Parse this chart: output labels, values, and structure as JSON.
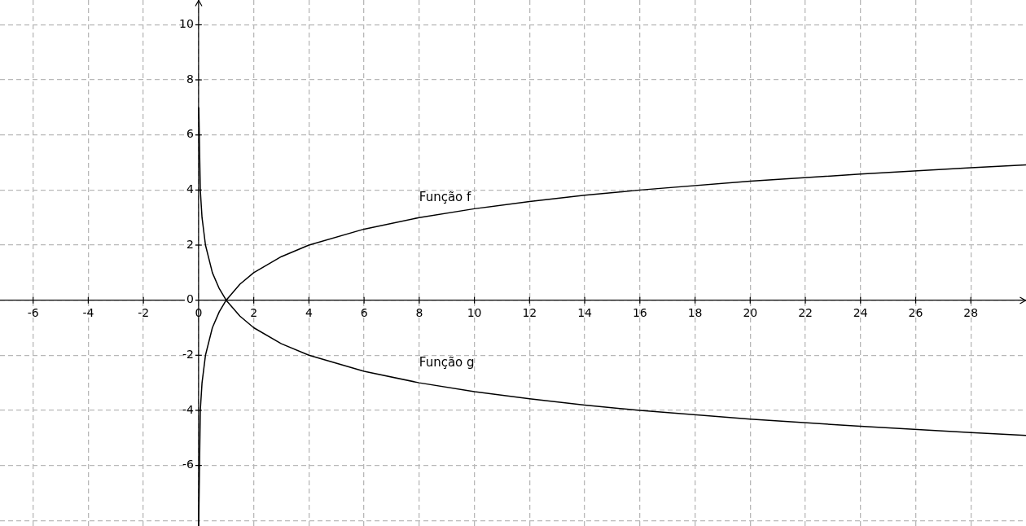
{
  "chart_data": {
    "type": "line",
    "series": [
      {
        "name": "Função f",
        "color": "#000000",
        "x": [
          0.0035,
          0.0625,
          0.125,
          0.25,
          0.5,
          0.75,
          1,
          1.5,
          2,
          3,
          4,
          6,
          8,
          10,
          12,
          14,
          16,
          20,
          24,
          28,
          30
        ],
        "values": [
          -8.2,
          -4,
          -3,
          -2,
          -1,
          -0.42,
          0,
          0.58,
          1,
          1.58,
          2,
          2.58,
          3,
          3.32,
          3.58,
          3.81,
          4,
          4.32,
          4.58,
          4.81,
          4.91
        ]
      },
      {
        "name": "Função g",
        "color": "#000000",
        "x": [
          0.0078,
          0.0625,
          0.125,
          0.25,
          0.5,
          0.75,
          1,
          1.5,
          2,
          3,
          4,
          6,
          8,
          10,
          12,
          14,
          16,
          20,
          24,
          28,
          30
        ],
        "values": [
          7,
          4,
          3,
          2,
          1,
          0.42,
          0,
          -0.58,
          -1,
          -1.58,
          -2,
          -2.58,
          -3,
          -3.32,
          -3.58,
          -3.81,
          -4,
          -4.32,
          -4.58,
          -4.81,
          -4.91
        ]
      }
    ],
    "xlim": [
      -7.2,
      30
    ],
    "ylim": [
      -8.2,
      10.9
    ],
    "xticks": [
      -6,
      -4,
      -2,
      0,
      2,
      4,
      6,
      8,
      10,
      12,
      14,
      16,
      18,
      20,
      22,
      24,
      26,
      28
    ],
    "yticks": [
      {
        "value": -8,
        "label": null
      },
      -6,
      -4,
      -2,
      0,
      2,
      4,
      6,
      8,
      10
    ],
    "grid": true,
    "marker": "none",
    "line_style": "solid",
    "legend": false
  }
}
